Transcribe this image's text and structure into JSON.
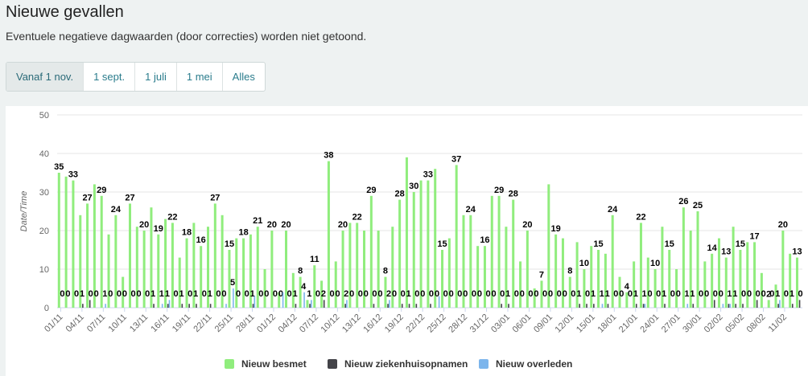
{
  "page": {
    "title": "Nieuwe gevallen",
    "subtitle": "Eventuele negatieve dagwaarden (door correcties) worden niet getoond.",
    "buttons": [
      "Vanaf 1 nov.",
      "1 sept.",
      "1 juli",
      "1 mei",
      "Alles"
    ]
  },
  "chart_data": {
    "type": "bar",
    "ylabel": "Date/Time",
    "categories": [
      "01/11",
      null,
      null,
      "04/11",
      null,
      null,
      "07/11",
      null,
      null,
      "10/11",
      null,
      null,
      "13/11",
      null,
      null,
      "16/11",
      null,
      null,
      "19/11",
      null,
      null,
      "22/11",
      null,
      null,
      "25/11",
      null,
      null,
      "28/11",
      null,
      null,
      "01/12",
      null,
      null,
      "04/12",
      null,
      null,
      "07/12",
      null,
      null,
      "10/12",
      null,
      null,
      "13/12",
      null,
      null,
      "16/12",
      null,
      null,
      "19/12",
      null,
      null,
      "22/12",
      null,
      null,
      "25/12",
      null,
      null,
      "28/12",
      null,
      null,
      "31/12",
      null,
      null,
      "03/01",
      null,
      null,
      "06/01",
      null,
      null,
      "09/01",
      null,
      null,
      "12/01",
      null,
      null,
      "15/01",
      null,
      null,
      "18/01",
      null,
      null,
      "21/01",
      null,
      null,
      "24/01",
      null,
      null,
      "27/01",
      null,
      null,
      "30/01",
      null,
      null,
      "02/02",
      null,
      null,
      "05/02",
      null,
      null,
      "08/02",
      null,
      null,
      "11/02",
      null,
      null
    ],
    "series": [
      {
        "name": "Nieuw besmet",
        "color": "#90ed7d",
        "values": [
          35,
          34,
          33,
          24,
          27,
          32,
          29,
          19,
          24,
          8,
          27,
          21,
          20,
          26,
          19,
          23,
          22,
          13,
          18,
          22,
          16,
          21,
          27,
          24,
          15,
          18,
          18,
          19,
          21,
          10,
          20,
          4,
          20,
          9,
          8,
          2,
          11,
          7,
          38,
          12,
          20,
          22,
          22,
          20,
          29,
          20,
          8,
          21,
          28,
          39,
          30,
          33,
          33,
          36,
          15,
          18,
          37,
          24,
          24,
          16,
          16,
          29,
          29,
          21,
          28,
          12,
          20,
          5,
          7,
          32,
          19,
          18,
          8,
          17,
          10,
          16,
          15,
          14,
          24,
          8,
          4,
          12,
          22,
          13,
          10,
          21,
          15,
          10,
          26,
          20,
          25,
          12,
          14,
          18,
          13,
          21,
          15,
          17,
          17,
          9,
          2,
          6,
          20,
          14,
          13
        ]
      },
      {
        "name": "Nieuw ziekenhuisopnamen",
        "color": "#434348",
        "values": [
          0,
          0,
          0,
          1,
          2,
          0,
          0,
          0,
          0,
          0,
          0,
          0,
          0,
          1,
          0,
          1,
          0,
          1,
          1,
          1,
          0,
          1,
          0,
          0,
          0,
          0,
          0,
          1,
          0,
          0,
          0,
          0,
          0,
          1,
          0,
          1,
          0,
          2,
          0,
          0,
          1,
          0,
          0,
          0,
          1,
          0,
          1,
          0,
          1,
          1,
          1,
          0,
          1,
          0,
          0,
          0,
          0,
          0,
          0,
          0,
          0,
          0,
          1,
          1,
          0,
          0,
          0,
          0,
          0,
          0,
          0,
          0,
          0,
          1,
          1,
          1,
          0,
          1,
          0,
          0,
          0,
          1,
          1,
          0,
          0,
          1,
          0,
          0,
          0,
          1,
          0,
          0,
          2,
          0,
          1,
          1,
          1,
          0,
          2,
          0,
          0,
          1,
          0,
          1,
          2
        ]
      },
      {
        "name": "Nieuw overleden",
        "color": "#7cb5ec",
        "values": [
          0,
          0,
          0,
          0,
          0,
          0,
          1,
          0,
          0,
          0,
          0,
          0,
          0,
          0,
          1,
          2,
          0,
          0,
          0,
          0,
          0,
          0,
          0,
          1,
          5,
          0,
          0,
          3,
          0,
          0,
          0,
          4,
          0,
          0,
          4,
          2,
          0,
          0,
          0,
          0,
          2,
          0,
          0,
          0,
          0,
          0,
          2,
          0,
          0,
          0,
          0,
          0,
          0,
          3,
          0,
          0,
          0,
          0,
          0,
          0,
          0,
          0,
          0,
          0,
          0,
          0,
          0,
          0,
          0,
          0,
          0,
          0,
          0,
          0,
          0,
          0,
          1,
          0,
          0,
          0,
          0,
          0,
          1,
          0,
          0,
          0,
          0,
          0,
          1,
          0,
          0,
          0,
          0,
          1,
          1,
          0,
          0,
          0,
          0,
          0,
          0,
          2,
          0,
          0,
          0
        ]
      }
    ],
    "ylim": [
      0,
      50
    ],
    "yticks": [
      0,
      10,
      20,
      30,
      40,
      50
    ],
    "grid": true,
    "legend": "bottom"
  }
}
